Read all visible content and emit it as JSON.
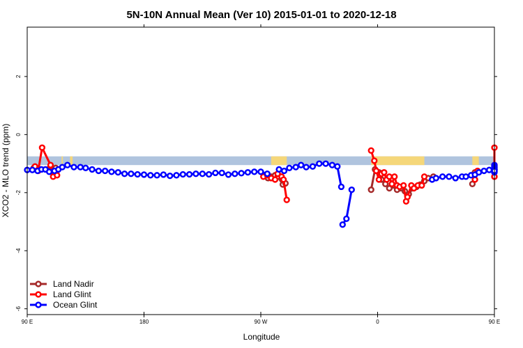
{
  "chart_data": {
    "type": "line",
    "title": "5N-10N Annual Mean (Ver 10)   2015-01-01 to 2020-12-18",
    "xlabel": "Longitude",
    "ylabel": "XCO2 - MLO trend (ppm)",
    "xlim": [
      90,
      450
    ],
    "ylim": [
      -6.2,
      3.7
    ],
    "x_ticks": [
      {
        "value": 90,
        "label": "90 E"
      },
      {
        "value": 180,
        "label": "180"
      },
      {
        "value": 270,
        "label": "90 W"
      },
      {
        "value": 360,
        "label": "0"
      },
      {
        "value": 450,
        "label": "90 E"
      }
    ],
    "x_ticks_top": [
      {
        "value": 180,
        "label": "180"
      },
      {
        "value": 270,
        "label": "90 W"
      },
      {
        "value": 360,
        "label": "0"
      }
    ],
    "y_ticks": [
      {
        "value": -6,
        "label": "-6"
      },
      {
        "value": -4,
        "label": "-4"
      },
      {
        "value": -2,
        "label": "-2"
      },
      {
        "value": 0,
        "label": "0"
      },
      {
        "value": 2,
        "label": "2"
      }
    ],
    "grid": false,
    "legend_position": "bottom-left",
    "land_band": {
      "y_range": [
        -1.05,
        -0.75
      ],
      "ocean_color": "#b0c4de",
      "land_color": "#f5d77a",
      "land_segments": [
        [
          116.5,
          117.5
        ],
        [
          123,
          125
        ],
        [
          278,
          290
        ],
        [
          355,
          396
        ],
        [
          433,
          438
        ],
        [
          476,
          479
        ],
        [
          483,
          486
        ]
      ]
    },
    "series": [
      {
        "name": "Land Nadir",
        "color": "#a52a2a",
        "segments": [
          [
            [
              95,
              -1.15
            ],
            [
              100,
              -1.2
            ],
            [
              108,
              -1.1
            ],
            [
              112,
              -1.15
            ]
          ],
          [
            [
              275.5,
              -1.5
            ],
            [
              278,
              -1.45
            ],
            [
              281,
              -1.4
            ],
            [
              283,
              -1.45
            ],
            [
              287,
              -1.72
            ],
            [
              289,
              -1.68
            ]
          ],
          [
            [
              355,
              -1.9
            ],
            [
              358,
              -1.2
            ],
            [
              361,
              -1.3
            ],
            [
              363,
              -1.55
            ],
            [
              366,
              -1.7
            ],
            [
              369,
              -1.85
            ],
            [
              372,
              -1.75
            ],
            [
              375,
              -1.9
            ],
            [
              378,
              -1.85
            ],
            [
              381,
              -1.95
            ],
            [
              384,
              -2.05
            ],
            [
              387,
              -1.85
            ],
            [
              390,
              -1.8
            ],
            [
              393,
              -1.72
            ],
            [
              396,
              -1.6
            ],
            [
              399,
              -1.5
            ],
            [
              403,
              -1.45
            ]
          ],
          [
            [
              433,
              -1.7
            ],
            [
              435,
              -1.3
            ]
          ],
          [
            [
              470,
              -1.1
            ],
            [
              474,
              -1.2
            ],
            [
              478,
              -1.05
            ],
            [
              483,
              -1.15
            ]
          ]
        ]
      },
      {
        "name": "Land Glint",
        "color": "#ff0000",
        "segments": [
          [
            [
              96,
              -1.1
            ],
            [
              98.5,
              -1.25
            ],
            [
              101.5,
              -0.45
            ],
            [
              108,
              -1.05
            ],
            [
              110,
              -1.45
            ],
            [
              113,
              -1.4
            ]
          ],
          [
            [
              272,
              -1.45
            ],
            [
              275,
              -1.4
            ],
            [
              278,
              -1.5
            ],
            [
              281,
              -1.55
            ],
            [
              283,
              -1.35
            ],
            [
              286,
              -1.45
            ],
            [
              287.5,
              -1.55
            ],
            [
              290,
              -2.25
            ]
          ],
          [
            [
              355,
              -0.55
            ],
            [
              357.5,
              -0.9
            ],
            [
              359,
              -1.25
            ],
            [
              361,
              -1.55
            ],
            [
              363,
              -1.35
            ],
            [
              365,
              -1.3
            ],
            [
              367,
              -1.55
            ],
            [
              369,
              -1.45
            ],
            [
              371,
              -1.7
            ],
            [
              373,
              -1.45
            ],
            [
              375,
              -1.75
            ],
            [
              377,
              -1.8
            ],
            [
              380,
              -1.75
            ],
            [
              382,
              -2.3
            ],
            [
              383,
              -2.15
            ],
            [
              386,
              -1.75
            ],
            [
              388,
              -1.85
            ],
            [
              391,
              -1.75
            ],
            [
              394,
              -1.75
            ],
            [
              396,
              -1.45
            ]
          ],
          [
            [
              435,
              -1.55
            ],
            [
              437,
              -1.25
            ]
          ],
          [
            [
              460,
              -1.2
            ],
            [
              465,
              -1.15
            ],
            [
              468,
              -0.45
            ],
            [
              474,
              -1.05
            ],
            [
              480,
              -1.45
            ],
            [
              484,
              -1.45
            ],
            [
              487,
              -1.2
            ]
          ]
        ]
      },
      {
        "name": "Ocean Glint",
        "color": "#0000ff",
        "segments": [
          [
            [
              90,
              -1.22
            ],
            [
              94,
              -1.22
            ],
            [
              98,
              -1.25
            ],
            [
              101,
              -1.2
            ],
            [
              104,
              -1.2
            ],
            [
              107,
              -1.28
            ],
            [
              111,
              -1.25
            ],
            [
              114,
              -1.2
            ],
            [
              117,
              -1.12
            ],
            [
              121,
              -1.05
            ],
            [
              126,
              -1.12
            ],
            [
              131,
              -1.12
            ],
            [
              135,
              -1.15
            ],
            [
              140,
              -1.2
            ],
            [
              145,
              -1.25
            ],
            [
              150,
              -1.25
            ],
            [
              155,
              -1.28
            ],
            [
              160,
              -1.3
            ],
            [
              165,
              -1.35
            ],
            [
              170,
              -1.35
            ],
            [
              175,
              -1.37
            ],
            [
              180,
              -1.38
            ],
            [
              185,
              -1.4
            ],
            [
              190,
              -1.4
            ],
            [
              195,
              -1.38
            ],
            [
              200,
              -1.42
            ],
            [
              205,
              -1.4
            ],
            [
              210,
              -1.37
            ],
            [
              215,
              -1.37
            ],
            [
              220,
              -1.35
            ],
            [
              225,
              -1.35
            ],
            [
              230,
              -1.37
            ],
            [
              235,
              -1.32
            ],
            [
              240,
              -1.32
            ],
            [
              245,
              -1.38
            ],
            [
              250,
              -1.35
            ],
            [
              255,
              -1.33
            ],
            [
              260,
              -1.3
            ],
            [
              265,
              -1.28
            ],
            [
              270,
              -1.28
            ],
            [
              275,
              -1.35
            ]
          ],
          [
            [
              284,
              -1.2
            ],
            [
              288,
              -1.25
            ],
            [
              292,
              -1.15
            ],
            [
              297,
              -1.12
            ],
            [
              301,
              -1.05
            ],
            [
              305,
              -1.12
            ],
            [
              310,
              -1.1
            ],
            [
              315,
              -1.0
            ],
            [
              320,
              -1.0
            ],
            [
              325,
              -1.05
            ],
            [
              329,
              -1.1
            ],
            [
              332,
              -1.8
            ]
          ],
          [
            [
              333,
              -3.1
            ],
            [
              336,
              -2.9
            ],
            [
              340,
              -1.9
            ]
          ],
          [
            [
              402,
              -1.55
            ],
            [
              405,
              -1.5
            ],
            [
              410,
              -1.45
            ],
            [
              415,
              -1.45
            ],
            [
              420,
              -1.5
            ],
            [
              425,
              -1.45
            ],
            [
              428,
              -1.45
            ],
            [
              432,
              -1.4
            ],
            [
              435,
              -1.38
            ],
            [
              438,
              -1.3
            ],
            [
              442,
              -1.25
            ],
            [
              446,
              -1.22
            ],
            [
              450,
              -1.25
            ],
            [
              455,
              -1.28
            ],
            [
              458,
              -1.25
            ],
            [
              462,
              -1.28
            ],
            [
              466,
              -1.3
            ],
            [
              470,
              -1.2
            ],
            [
              474,
              -1.22
            ],
            [
              478,
              -1.15
            ],
            [
              482,
              -1.15
            ],
            [
              486,
              -1.1
            ],
            [
              490,
              -1.05
            ],
            [
              495,
              -1.1
            ],
            [
              500,
              -1.15
            ],
            [
              505,
              -1.15
            ],
            [
              510,
              -1.2
            ],
            [
              515,
              -1.2
            ],
            [
              520,
              -1.2
            ],
            [
              525,
              -1.22
            ],
            [
              530,
              -1.25
            ]
          ]
        ]
      }
    ]
  }
}
